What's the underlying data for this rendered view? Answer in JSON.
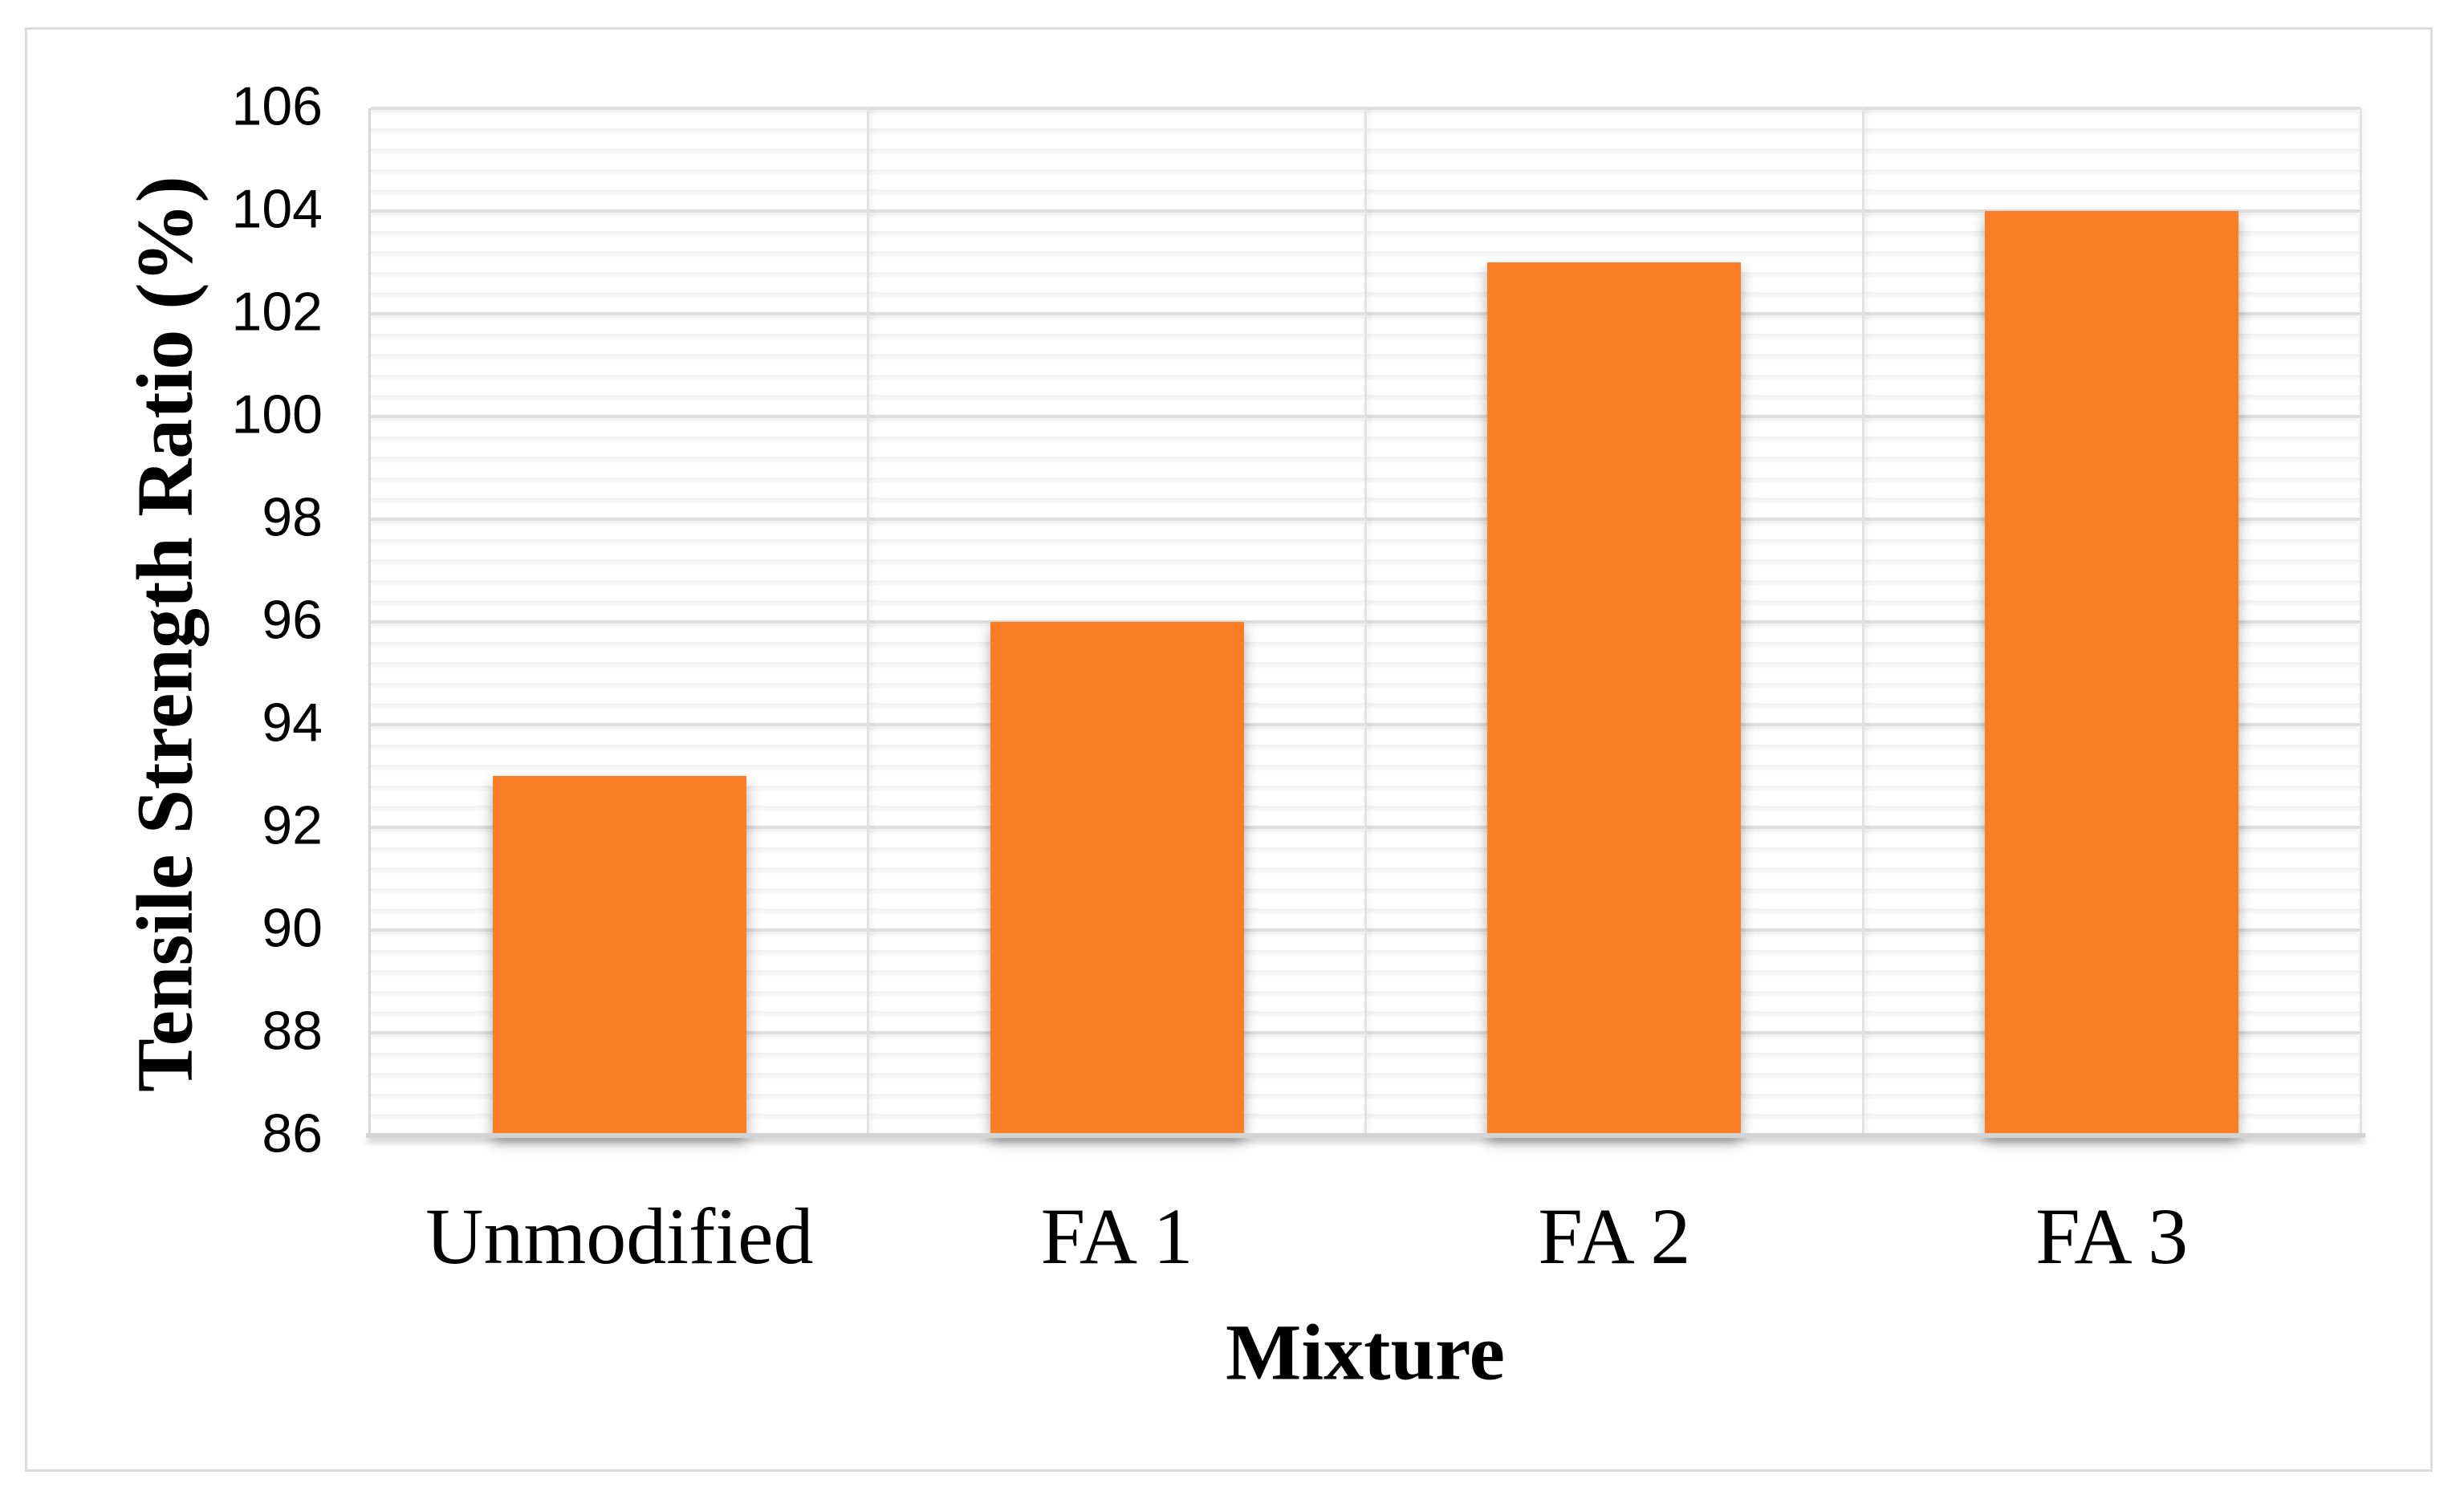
{
  "chart_data": {
    "type": "bar",
    "title": "",
    "categories": [
      "Unmodified",
      "FA 1",
      "FA 2",
      "FA 3"
    ],
    "values": [
      93,
      96,
      103,
      104
    ],
    "xlabel": "Mixture",
    "ylabel": "Tensile Strength Ratio (%)",
    "ylim": [
      86,
      106
    ],
    "y_major_unit": 2,
    "y_minor_unit": 0.4,
    "y_ticks": [
      106,
      104,
      102,
      100,
      98,
      96,
      94,
      92,
      90,
      88,
      86
    ],
    "legend_position": "none",
    "grid": {
      "horizontal_major": true,
      "horizontal_minor": true,
      "vertical_category_lines": true
    },
    "colors": {
      "bar_fill": "#FB7D26",
      "gridline_major": "#DEDEDE",
      "gridline_minor": "#F2F2F2",
      "axis_line": "#D3D3D3",
      "outer_frame": "#DCDCDC",
      "text": "#000000",
      "background": "#FFFFFF"
    }
  }
}
